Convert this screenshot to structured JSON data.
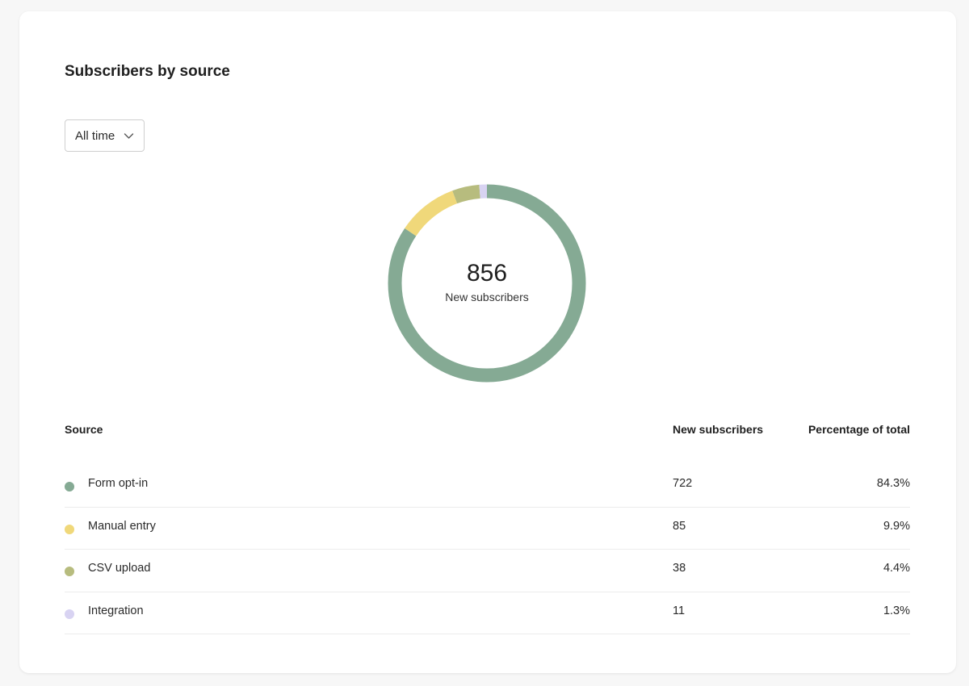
{
  "card": {
    "title": "Subscribers by source",
    "filter": {
      "selected": "All time"
    }
  },
  "summary": {
    "total": "856",
    "label": "New subscribers"
  },
  "table": {
    "headers": {
      "source": "Source",
      "count": "New subscribers",
      "percent": "Percentage of total"
    },
    "rows": [
      {
        "source": "Form opt-in",
        "count": "722",
        "percent": "84.3%",
        "color": "#85aa94"
      },
      {
        "source": "Manual entry",
        "count": "85",
        "percent": "9.9%",
        "color": "#f0d87a"
      },
      {
        "source": "CSV upload",
        "count": "38",
        "percent": "4.4%",
        "color": "#b7bc7e"
      },
      {
        "source": "Integration",
        "count": "11",
        "percent": "1.3%",
        "color": "#d8d3f2"
      }
    ]
  },
  "chart_data": {
    "type": "pie",
    "categories": [
      "Form opt-in",
      "Manual entry",
      "CSV upload",
      "Integration"
    ],
    "values": [
      722,
      85,
      38,
      11
    ],
    "colors": [
      "#85aa94",
      "#f0d87a",
      "#b7bc7e",
      "#d8d3f2"
    ],
    "title": "",
    "center_value": "856",
    "center_label": "New subscribers",
    "style": "donut"
  }
}
